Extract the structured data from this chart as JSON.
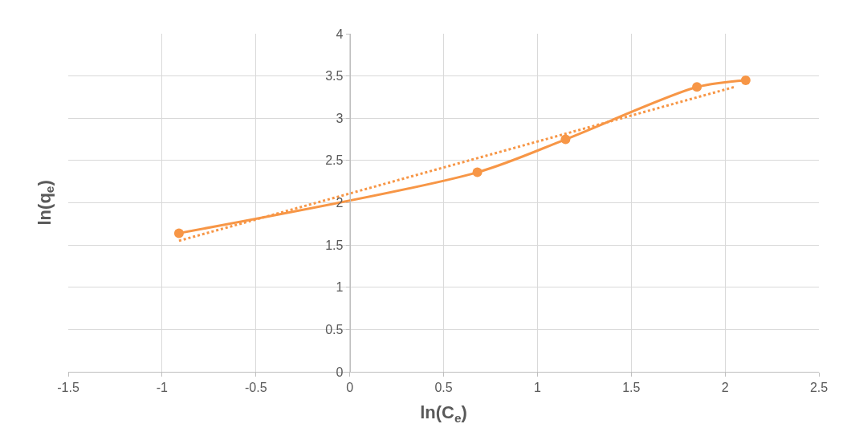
{
  "chart_data": {
    "type": "line",
    "xlabel": "ln(C$_{e}$)",
    "ylabel": "ln(q$_{e}$)",
    "xlim": [
      -1.5,
      2.5
    ],
    "xticks": [
      -1.5,
      -1,
      -0.5,
      0,
      0.5,
      1,
      1.5,
      2,
      2.5
    ],
    "ylim": [
      0,
      4
    ],
    "yticks": [
      0,
      0.5,
      1,
      1.5,
      2,
      2.5,
      3,
      3.5,
      4
    ],
    "grid": true,
    "x": [
      -0.91,
      0.68,
      1.15,
      1.85,
      2.11
    ],
    "series": [
      {
        "color": "#f79646",
        "values": [
          1.64,
          2.36,
          2.75,
          3.37,
          3.45
        ],
        "line_style": "solid",
        "marker": "circle"
      },
      {
        "type": "line",
        "color": "#f79646",
        "x": [
          -0.91,
          2.05
        ],
        "values": [
          1.55,
          3.37
        ],
        "line_style": "dotted",
        "marker": "none"
      }
    ]
  }
}
